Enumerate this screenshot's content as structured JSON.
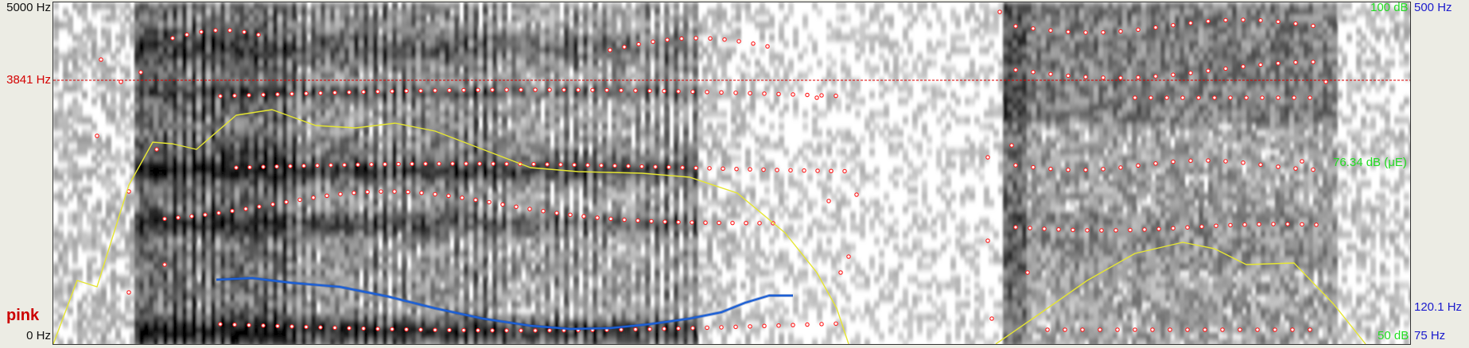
{
  "left_axis": {
    "top_label": "5000 Hz",
    "cursor_label": "3841 Hz",
    "bottom_label": "0 Hz"
  },
  "right_axis": {
    "intensity_top": "100 dB",
    "pitch_top": "500 Hz",
    "intensity_value": "76.34 dB (μE)",
    "pitch_value": "120.1 Hz",
    "intensity_bottom": "50 dB",
    "pitch_bottom": "75 Hz"
  },
  "word_label": "pink",
  "colors": {
    "cursor": "#e00000",
    "formant": "#ff1a1a",
    "intensity": "#e6e632",
    "pitch": "#1b5fd6",
    "pitch_label": "#1a1acc",
    "intensity_label": "#22dd22"
  }
}
